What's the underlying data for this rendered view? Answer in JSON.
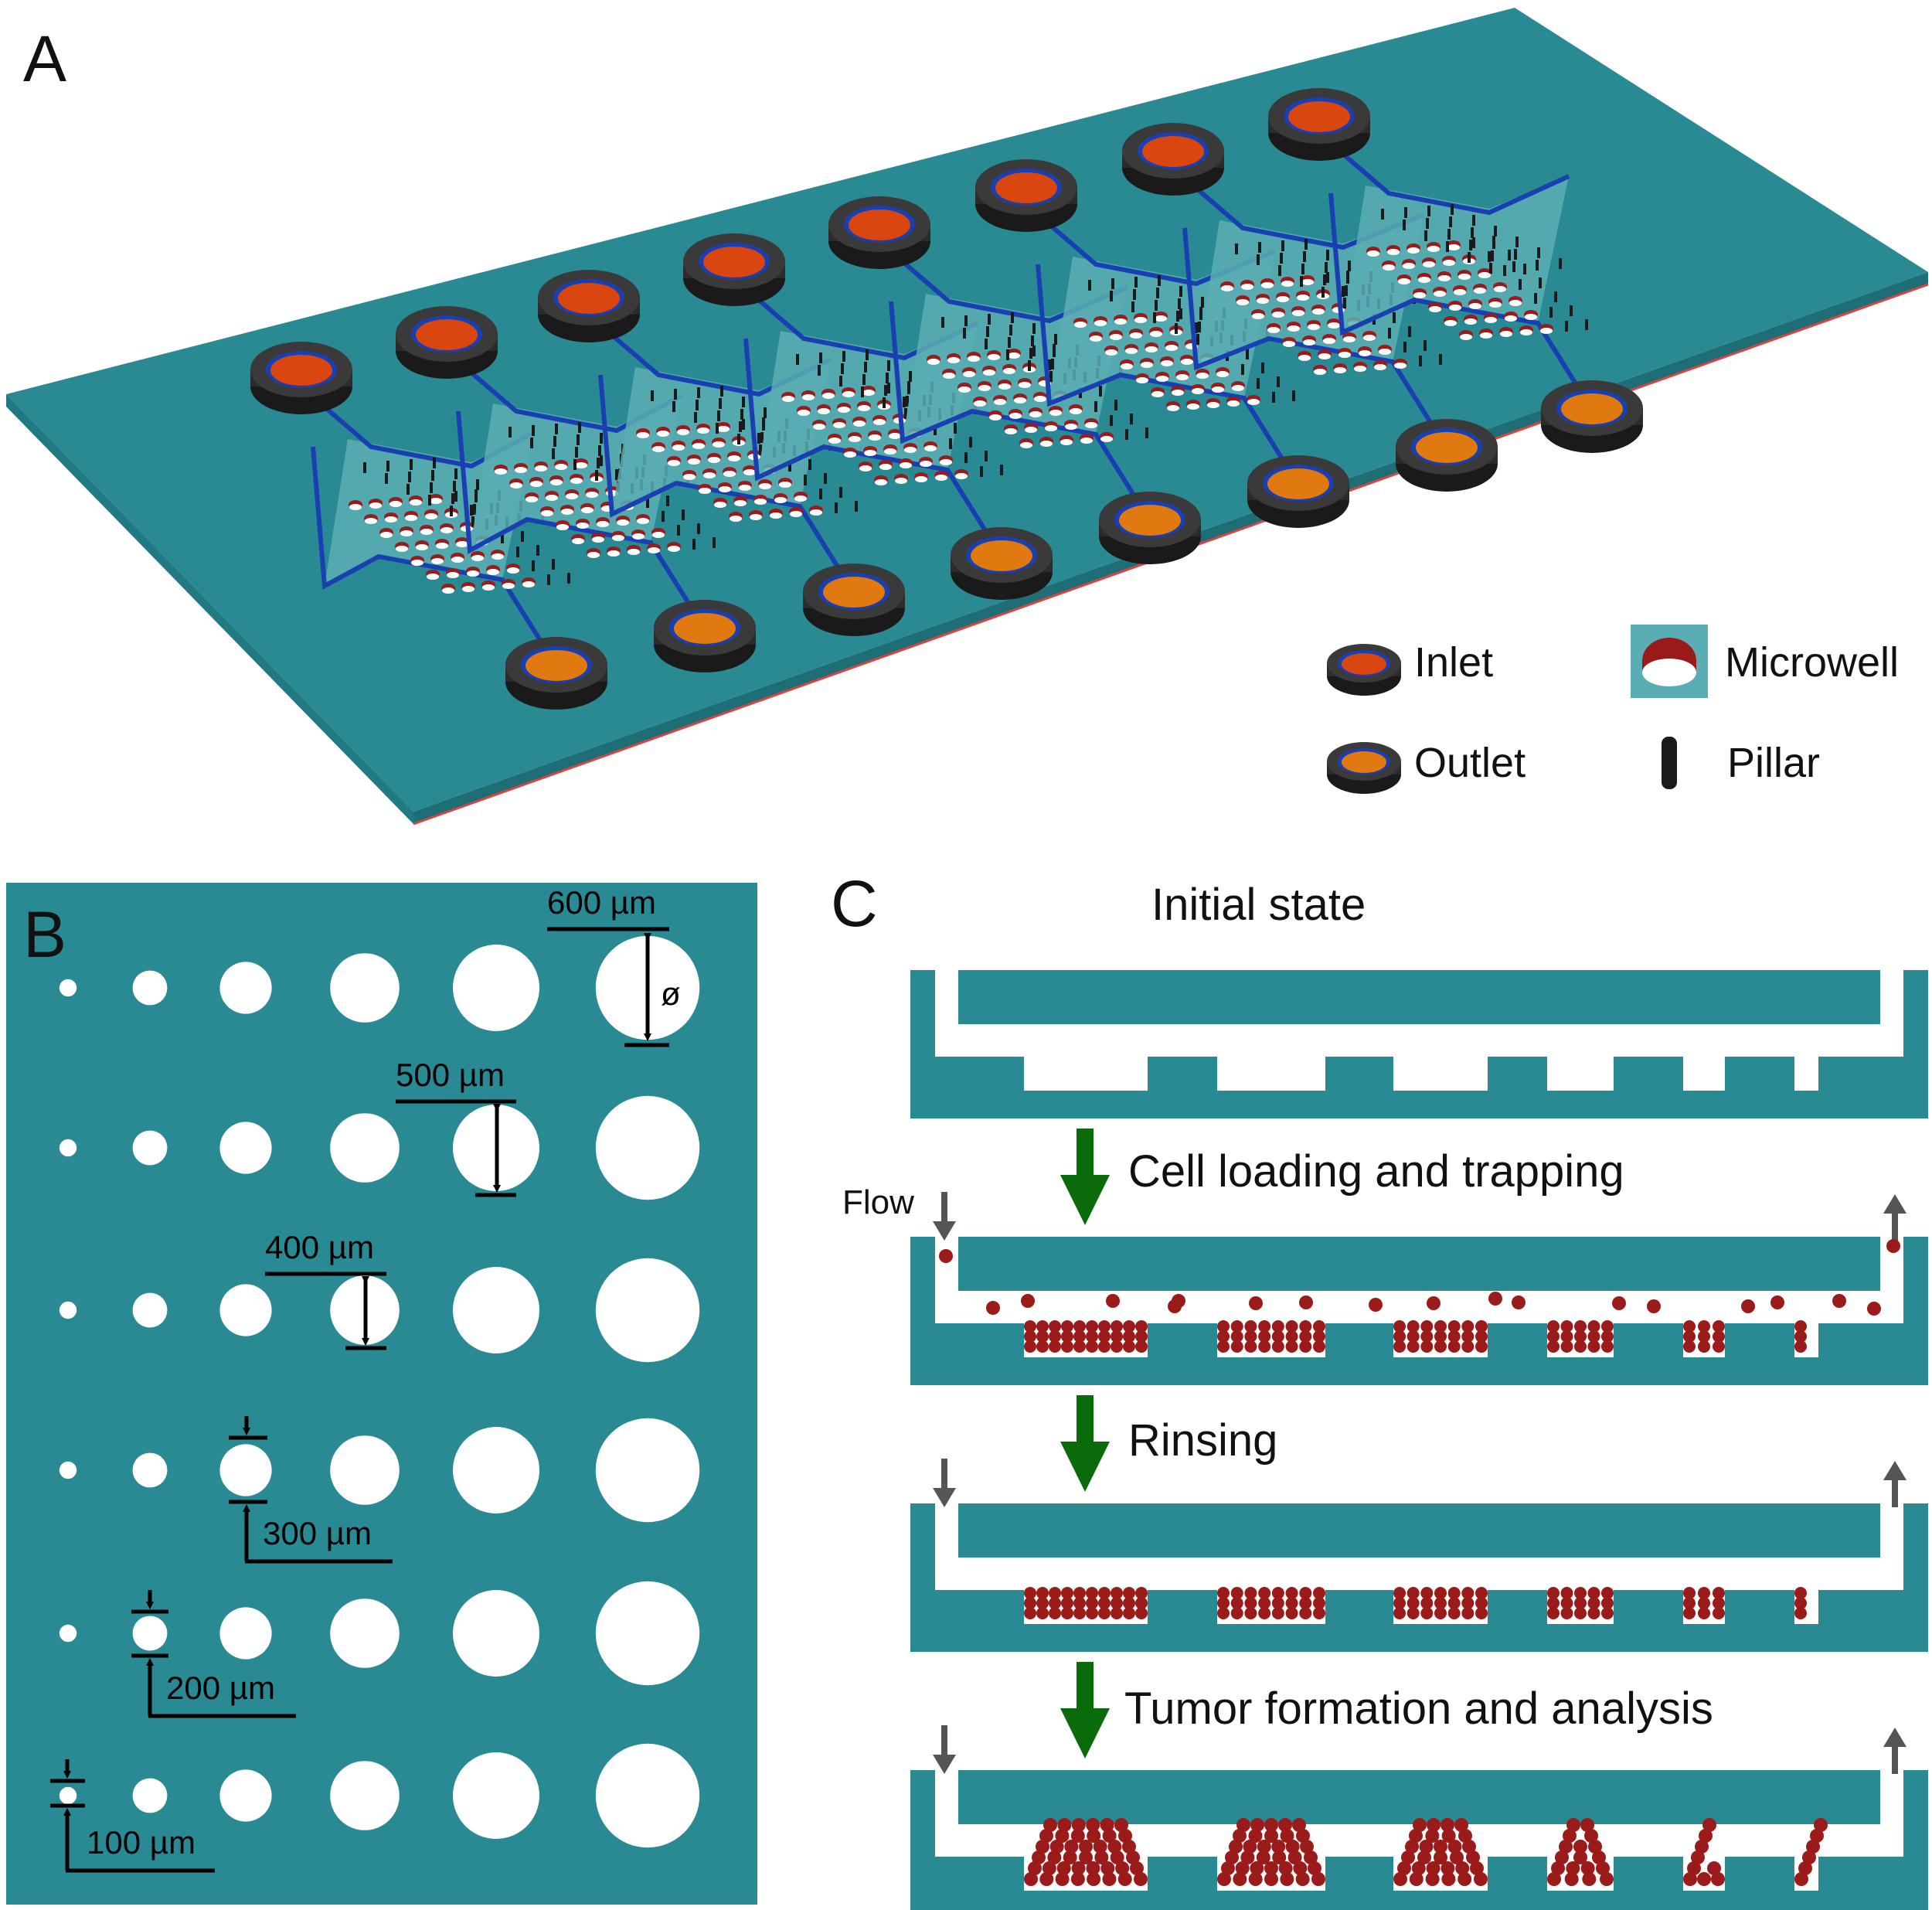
{
  "panels": {
    "a": "A",
    "b": "B",
    "c": "C"
  },
  "legend": {
    "inlet": "Inlet",
    "outlet": "Outlet",
    "microwell": "Microwell",
    "pillar": "Pillar"
  },
  "dimensions": {
    "d600": "600 µm",
    "d500": "500 µm",
    "d400": "400 µm",
    "d300": "300 µm",
    "d200": "200 µm",
    "d100": "100 µm",
    "diameter_symbol": "ø"
  },
  "steps": {
    "initial": "Initial state",
    "loading": "Cell loading and trapping",
    "flow": "Flow",
    "rinsing": "Rinsing",
    "formation": "Tumor formation and analysis"
  },
  "well_diameters_um": [
    100,
    200,
    300,
    400,
    500,
    600
  ],
  "colors": {
    "teal": "#2a8a94",
    "teal_light": "#5aaeb3",
    "channel": "#1a3fb0",
    "inlet_fill": "#d9460f",
    "outlet_fill": "#e07a10",
    "port_dark": "#2b2b2b",
    "cell": "#9b1b1b",
    "arrow_green": "#0a6b0a",
    "arrow_gray": "#555555"
  }
}
